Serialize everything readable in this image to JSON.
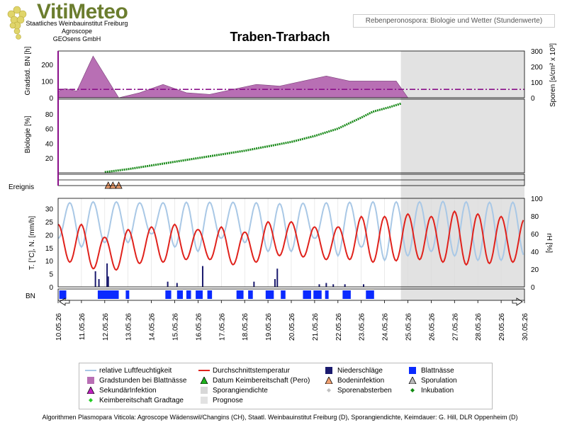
{
  "branding": {
    "logo_title": "VitiMeteo",
    "logo_lines": [
      "Staatliches Weinbauinstitut Freiburg",
      "Agroscope",
      "GEOsens GmbH"
    ]
  },
  "header_label": "Rebenperonospora: Biologie und Wetter (Stundenwerte)",
  "page_title": "Traben-Trarbach",
  "footer": "Algorithmen Plasmopara Viticola: Agroscope Wädenswil/Changins (CH), Staatl. Weinbauinstitut Freiburg (D), Sporangiendichte, Keimdauer: G. Hill, DLR Oppenheim (D)",
  "colors": {
    "humidity": "#a9c8e6",
    "temperature": "#e0221c",
    "rain": "#1a1a6e",
    "leafwet": "#0a2aff",
    "gradstd": "#b86fb4",
    "biology": "#1a8a1a",
    "prognosis": "#e2e2e2",
    "threshold": "#8a108a"
  },
  "chart_data": {
    "type": "line",
    "x_dates": [
      "10.05.26",
      "11.05.26",
      "12.05.26",
      "13.05.26",
      "14.05.26",
      "15.05.26",
      "16.05.26",
      "17.05.26",
      "18.05.26",
      "19.05.26",
      "20.05.26",
      "21.05.26",
      "22.05.26",
      "23.05.26",
      "24.05.26",
      "25.05.26",
      "26.05.26",
      "27.05.26",
      "28.05.26",
      "29.05.26",
      "30.05.26"
    ],
    "prognosis_from_day": 14.7,
    "panels": {
      "gradstd": {
        "ylabel_left": "Gradstd. BN [h]",
        "ylabel_right": "Sporen [s/cm² x 10³]",
        "yticks_left": [
          "200",
          "100",
          "0"
        ],
        "yticks_right": [
          "300",
          "200",
          "100",
          "0"
        ],
        "ylim": [
          0,
          280
        ],
        "threshold": 50,
        "series": {
          "x": [
            0,
            0.3,
            0.8,
            1.5,
            2.6,
            3.5,
            4.5,
            5.5,
            6.5,
            7.5,
            8.5,
            9.5,
            10.5,
            11.5,
            12.5,
            13.5,
            14.5,
            15.0
          ],
          "values": [
            40,
            55,
            40,
            250,
            0,
            30,
            80,
            30,
            20,
            50,
            80,
            70,
            100,
            130,
            100,
            100,
            100,
            0
          ]
        }
      },
      "biology": {
        "ylabel": "Biologie [%]",
        "yticks": [
          "80",
          "60",
          "40",
          "20"
        ],
        "ylim": [
          0,
          100
        ],
        "series": {
          "x": [
            2.0,
            3,
            4,
            5,
            6,
            7,
            8,
            9,
            10,
            11,
            12,
            13,
            13.5,
            14.2,
            14.7
          ],
          "values": [
            1,
            5,
            10,
            15,
            20,
            25,
            30,
            36,
            42,
            50,
            60,
            75,
            83,
            89,
            94
          ]
        }
      },
      "events": {
        "label": "Ereignis",
        "markers": [
          {
            "x": 2.15,
            "type": "Bodeninfektion"
          },
          {
            "x": 2.35,
            "type": "Bodeninfektion"
          },
          {
            "x": 2.6,
            "type": "Bodeninfektion"
          }
        ]
      },
      "weather": {
        "ylabel_left": "T. [°C], N. [mm/h]",
        "ylabel_right": "rH [%]",
        "yticks_left": [
          "30",
          "25",
          "20",
          "15",
          "10",
          "5",
          "0"
        ],
        "yticks_right": [
          "100",
          "80",
          "60",
          "40",
          "20",
          "0"
        ],
        "temp_range": [
          0,
          34
        ],
        "rh_range": [
          0,
          100
        ],
        "temperature": {
          "days": [
            0,
            1,
            2,
            3,
            4,
            5,
            6,
            7,
            8,
            9,
            10,
            11,
            12,
            13,
            14,
            15,
            16,
            17,
            18,
            19,
            20
          ],
          "min": [
            10,
            9,
            5,
            8,
            10,
            9,
            12,
            9,
            8,
            11,
            13,
            10,
            11,
            10,
            9,
            11,
            10,
            9,
            8,
            10,
            9
          ],
          "max": [
            24,
            24,
            19,
            22,
            23,
            24,
            22,
            23,
            21,
            25,
            25,
            23,
            23,
            27,
            27,
            28,
            27,
            29,
            28,
            27,
            26
          ]
        },
        "humidity": {
          "days": [
            0,
            1,
            2,
            3,
            4,
            5,
            6,
            7,
            8,
            9,
            10,
            11,
            12,
            13,
            14,
            15,
            16,
            17,
            18,
            19,
            20
          ],
          "min": [
            55,
            45,
            50,
            50,
            60,
            45,
            40,
            55,
            50,
            40,
            40,
            55,
            35,
            45,
            30,
            35,
            40,
            35,
            30,
            30,
            35
          ],
          "max": [
            95,
            95,
            97,
            95,
            95,
            95,
            96,
            95,
            96,
            94,
            94,
            95,
            95,
            96,
            96,
            96,
            96,
            97,
            95,
            96,
            95
          ]
        },
        "rain": {
          "x": [
            1.6,
            1.75,
            2.1,
            2.15,
            4.7,
            5.1,
            6.2,
            8.4,
            9.3,
            9.4,
            11.2,
            11.5,
            11.8,
            12.3,
            13.1
          ],
          "values": [
            6,
            3,
            9,
            4,
            2,
            1.5,
            8,
            2,
            3,
            7,
            1,
            1.5,
            1,
            1,
            1
          ]
        }
      },
      "leafwet": {
        "label": "BN",
        "intervals": [
          [
            0.05,
            0.35
          ],
          [
            1.7,
            2.6
          ],
          [
            2.9,
            3.05
          ],
          [
            4.6,
            4.85
          ],
          [
            5.1,
            5.35
          ],
          [
            5.5,
            5.7
          ],
          [
            5.9,
            6.2
          ],
          [
            6.4,
            6.6
          ],
          [
            7.65,
            7.95
          ],
          [
            8.15,
            8.35
          ],
          [
            8.9,
            9.25
          ],
          [
            9.55,
            9.75
          ],
          [
            10.5,
            10.85
          ],
          [
            10.95,
            11.3
          ],
          [
            11.45,
            11.6
          ],
          [
            12.2,
            12.55
          ],
          [
            13.2,
            13.55
          ]
        ]
      }
    },
    "legend": [
      {
        "label": "relative Luftfeuchtigkeit",
        "kind": "line",
        "color": "#a9c8e6"
      },
      {
        "label": "Durchschnittstemperatur",
        "kind": "line",
        "color": "#e0221c"
      },
      {
        "label": "Niederschläge",
        "kind": "square",
        "color": "#1a1a6e"
      },
      {
        "label": "Blattnässe",
        "kind": "square",
        "color": "#0a2aff"
      },
      {
        "label": "Gradstunden bei Blattnässe",
        "kind": "square",
        "color": "#b86fb4"
      },
      {
        "label": "Datum Keimbereitschaft (Pero)",
        "kind": "triangle",
        "color": "#1db31d"
      },
      {
        "label": "Bodeninfektion",
        "kind": "triangle",
        "color": "#f0a070"
      },
      {
        "label": "Sporulation",
        "kind": "triangle",
        "color": "#b8b8b8"
      },
      {
        "label": "SekundärInfektion",
        "kind": "triangle",
        "color": "#c020c0"
      },
      {
        "label": "Sporangiendichte",
        "kind": "square",
        "color": "#d8d8d8"
      },
      {
        "label": "Sporenabsterben",
        "kind": "diamond",
        "color": "#c0c0c0"
      },
      {
        "label": "Inkubation",
        "kind": "diamond",
        "color": "#108a10"
      },
      {
        "label": "Keimbereitschaft Gradtage",
        "kind": "diamond",
        "color": "#22cc22"
      },
      {
        "label": "Prognose",
        "kind": "square",
        "color": "#e2e2e2"
      }
    ]
  }
}
